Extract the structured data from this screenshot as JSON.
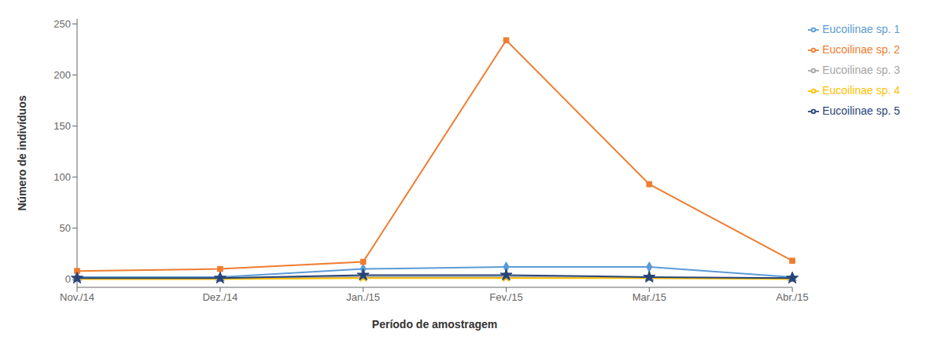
{
  "chart_data": {
    "type": "line",
    "xlabel": "Período de amostragem",
    "ylabel": "Número de indivíduos",
    "categories": [
      "Nov./14",
      "Dez./14",
      "Jan./15",
      "Fev./15",
      "Mar./15",
      "Abr./15"
    ],
    "series": [
      {
        "name": "Eucoilinae sp. 1",
        "color": "#5B9BD5",
        "marker": "diamond",
        "values": [
          2,
          2,
          10,
          12,
          12,
          2
        ]
      },
      {
        "name": "Eucoilinae sp. 2",
        "color": "#ED7D31",
        "marker": "square",
        "values": [
          8,
          10,
          17,
          234,
          93,
          18
        ]
      },
      {
        "name": "Eucoilinae sp. 3",
        "color": "#A5A5A5",
        "marker": "triangle",
        "values": [
          1,
          1,
          2,
          2,
          1,
          1
        ]
      },
      {
        "name": "Eucoilinae sp. 4",
        "color": "#FFC000",
        "marker": "x",
        "values": [
          0,
          0,
          1,
          1,
          1,
          0
        ]
      },
      {
        "name": "Eucoilinae sp. 5",
        "color": "#264478",
        "marker": "star",
        "values": [
          1,
          1,
          4,
          4,
          2,
          1
        ]
      }
    ],
    "ylim": [
      -8,
      255
    ],
    "yticks": [
      0,
      50,
      100,
      150,
      200,
      250
    ],
    "grid": false,
    "legend": "right"
  }
}
